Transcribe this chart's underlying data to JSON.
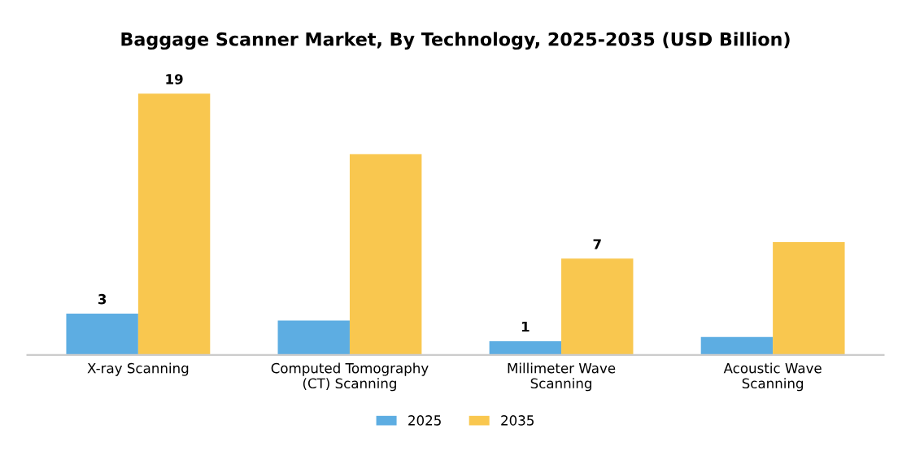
{
  "chart_data": {
    "type": "bar",
    "title": "Baggage Scanner Market, By Technology, 2025-2035 (USD Billion)",
    "categories": [
      "X-ray Scanning",
      "Computed Tomography\n(CT) Scanning",
      "Millimeter Wave\nScanning",
      "Acoustic Wave\nScanning"
    ],
    "series": [
      {
        "name": "2025",
        "color": "#5dade2",
        "values": [
          3,
          2.5,
          1,
          1.3
        ],
        "value_labels": [
          "3",
          null,
          "1",
          null
        ]
      },
      {
        "name": "2035",
        "color": "#f9c74f",
        "values": [
          19,
          14.6,
          7,
          8.2
        ],
        "value_labels": [
          "19",
          null,
          "7",
          null
        ]
      }
    ],
    "legend": "bottom",
    "grid": false
  }
}
